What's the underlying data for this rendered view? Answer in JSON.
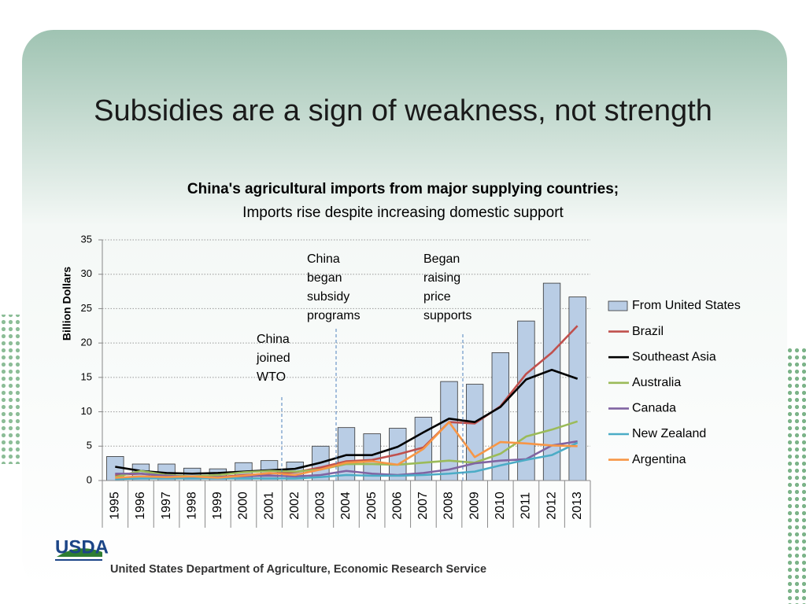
{
  "slide_title": "Subsidies are a sign of weakness, not strength",
  "logo": "USDA",
  "footer": "United States Department of Agriculture, Economic Research Service",
  "chart_data": {
    "type": "bar-line",
    "title": "China's agricultural imports from major supplying countries;",
    "subtitle": "Imports rise despite increasing domestic support",
    "y_label": "Billion Dollars",
    "categories": [
      "1995",
      "1996",
      "1997",
      "1998",
      "1999",
      "2000",
      "2001",
      "2002",
      "2003",
      "2004",
      "2005",
      "2006",
      "2007",
      "2008",
      "2009",
      "2010",
      "2011",
      "2012",
      "2013"
    ],
    "ylim": [
      0,
      35
    ],
    "yticks": [
      0,
      5,
      10,
      15,
      20,
      25,
      30,
      35
    ],
    "grid": true,
    "legend": "right",
    "series": [
      {
        "name": "From United States",
        "type": "bar",
        "color": "#b9cde5",
        "values": [
          3.5,
          2.4,
          2.4,
          1.8,
          1.7,
          2.6,
          2.9,
          2.7,
          5.0,
          7.7,
          6.8,
          7.6,
          9.2,
          14.4,
          14.0,
          18.6,
          23.2,
          28.7,
          26.7
        ]
      },
      {
        "name": "Brazil",
        "type": "line",
        "color": "#c0504d",
        "values": [
          0.8,
          1.0,
          0.6,
          0.6,
          0.5,
          0.8,
          1.0,
          1.2,
          1.9,
          2.8,
          3.0,
          3.8,
          4.8,
          8.5,
          8.3,
          10.8,
          15.5,
          18.6,
          22.5
        ]
      },
      {
        "name": "Southeast Asia",
        "type": "line",
        "color": "#000000",
        "values": [
          2.0,
          1.4,
          1.1,
          1.0,
          1.1,
          1.3,
          1.5,
          1.7,
          2.6,
          3.7,
          3.7,
          4.9,
          7.0,
          9.0,
          8.5,
          10.7,
          14.7,
          16.1,
          14.8
        ]
      },
      {
        "name": "Australia",
        "type": "line",
        "color": "#9bbb59",
        "values": [
          0.5,
          1.4,
          0.8,
          0.6,
          0.8,
          1.2,
          1.4,
          1.3,
          1.6,
          2.4,
          2.4,
          2.3,
          2.6,
          2.9,
          2.6,
          3.9,
          6.4,
          7.4,
          8.6
        ]
      },
      {
        "name": "Canada",
        "type": "line",
        "color": "#8064a2",
        "values": [
          1.0,
          1.0,
          0.7,
          0.5,
          0.5,
          0.6,
          0.7,
          0.6,
          0.8,
          1.4,
          1.0,
          0.8,
          1.1,
          1.6,
          2.5,
          2.9,
          3.1,
          5.1,
          5.7
        ]
      },
      {
        "name": "New Zealand",
        "type": "line",
        "color": "#4bacc6",
        "values": [
          0.2,
          0.3,
          0.3,
          0.3,
          0.3,
          0.3,
          0.3,
          0.3,
          0.5,
          0.8,
          0.7,
          0.7,
          0.8,
          1.0,
          1.3,
          2.2,
          3.0,
          3.7,
          5.5
        ]
      },
      {
        "name": "Argentina",
        "type": "line",
        "color": "#f79646",
        "values": [
          0.4,
          0.6,
          0.5,
          0.6,
          0.4,
          0.7,
          1.1,
          0.8,
          1.6,
          2.6,
          2.8,
          2.3,
          4.6,
          8.5,
          3.4,
          5.6,
          5.4,
          5.1,
          5.0
        ]
      }
    ],
    "annotations": [
      "China joined WTO",
      "China began subsidy programs",
      "Began raising price supports"
    ]
  }
}
